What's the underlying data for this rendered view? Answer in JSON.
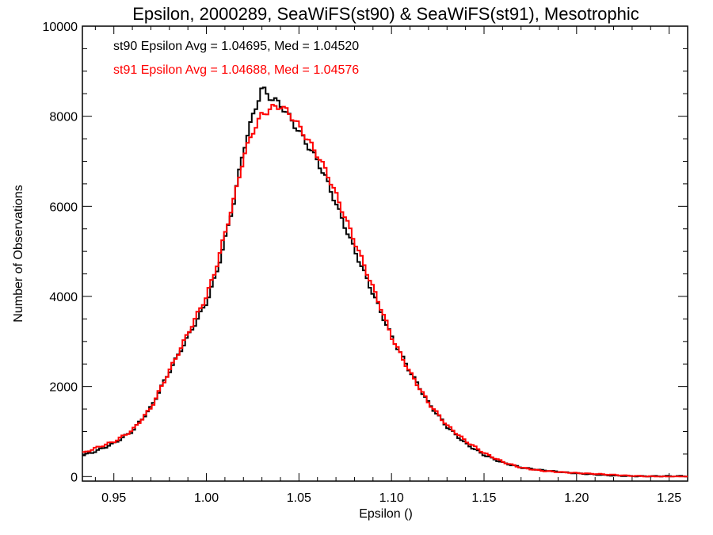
{
  "chart_data": {
    "type": "line",
    "subtype": "step-histogram",
    "title": "Epsilon, 2000289, SeaWiFS(st90) & SeaWiFS(st91), Mesotrophic",
    "xlabel": "Epsilon ()",
    "ylabel": "Number of Observations",
    "xlim": [
      0.933,
      1.26
    ],
    "ylim": [
      -100,
      10000
    ],
    "x_ticks": [
      0.95,
      1.0,
      1.05,
      1.1,
      1.15,
      1.2,
      1.25
    ],
    "x_tick_labels": [
      "0.95",
      "1.00",
      "1.05",
      "1.10",
      "1.15",
      "1.20",
      "1.25"
    ],
    "y_ticks": [
      0,
      2000,
      4000,
      6000,
      8000,
      10000
    ],
    "y_tick_labels": [
      "0",
      "2000",
      "4000",
      "6000",
      "8000",
      "10000"
    ],
    "grid": false,
    "annotations": [
      {
        "text": "st90 Epsilon Avg = 1.04695, Med = 1.04520",
        "color": "#000000"
      },
      {
        "text": "st91 Epsilon Avg = 1.04688, Med = 1.04576",
        "color": "#ff0000"
      }
    ],
    "series": [
      {
        "color": "#000000",
        "x": [
          0.933,
          0.94,
          0.95,
          0.96,
          0.97,
          0.98,
          0.99,
          1.0,
          1.005,
          1.01,
          1.015,
          1.02,
          1.025,
          1.03,
          1.035,
          1.04,
          1.045,
          1.05,
          1.055,
          1.06,
          1.065,
          1.07,
          1.075,
          1.08,
          1.085,
          1.09,
          1.095,
          1.1,
          1.105,
          1.11,
          1.12,
          1.13,
          1.14,
          1.15,
          1.16,
          1.17,
          1.18,
          1.19,
          1.2,
          1.21,
          1.22,
          1.23,
          1.24,
          1.25,
          1.26
        ],
        "values": [
          480,
          580,
          750,
          1000,
          1500,
          2300,
          3100,
          3900,
          4500,
          5300,
          6200,
          7300,
          8000,
          8600,
          8350,
          8200,
          7900,
          7600,
          7300,
          7000,
          6600,
          6100,
          5600,
          5100,
          4600,
          4100,
          3600,
          3100,
          2700,
          2300,
          1600,
          1100,
          750,
          500,
          320,
          200,
          140,
          100,
          70,
          50,
          30,
          15,
          8,
          4,
          2
        ]
      },
      {
        "color": "#ff0000",
        "x": [
          0.933,
          0.94,
          0.95,
          0.96,
          0.97,
          0.98,
          0.99,
          1.0,
          1.005,
          1.01,
          1.015,
          1.02,
          1.025,
          1.03,
          1.035,
          1.04,
          1.045,
          1.05,
          1.055,
          1.06,
          1.065,
          1.07,
          1.075,
          1.08,
          1.085,
          1.09,
          1.095,
          1.1,
          1.105,
          1.11,
          1.12,
          1.13,
          1.14,
          1.15,
          1.16,
          1.17,
          1.18,
          1.19,
          1.2,
          1.21,
          1.22,
          1.23,
          1.24,
          1.25,
          1.26
        ],
        "values": [
          500,
          620,
          780,
          1050,
          1550,
          2350,
          3150,
          3950,
          4550,
          5350,
          6150,
          7100,
          7700,
          8100,
          8250,
          8300,
          8100,
          7800,
          7450,
          7100,
          6700,
          6200,
          5700,
          5200,
          4700,
          4200,
          3700,
          3150,
          2750,
          2350,
          1650,
          1120,
          770,
          510,
          330,
          210,
          145,
          105,
          75,
          52,
          32,
          16,
          9,
          5,
          2
        ]
      }
    ]
  }
}
